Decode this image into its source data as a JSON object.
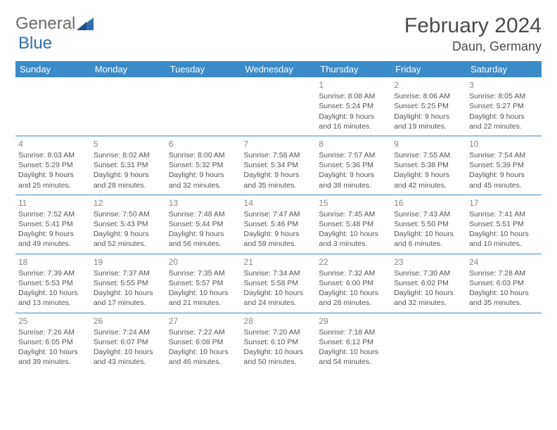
{
  "brand": {
    "word1": "General",
    "word2": "Blue"
  },
  "title": "February 2024",
  "location": "Daun, Germany",
  "header_bg": "#3b8bc8",
  "weekdays": [
    "Sunday",
    "Monday",
    "Tuesday",
    "Wednesday",
    "Thursday",
    "Friday",
    "Saturday"
  ],
  "weeks": [
    [
      null,
      null,
      null,
      null,
      {
        "n": "1",
        "sr": "8:08 AM",
        "ss": "5:24 PM",
        "dl": "9 hours and 16 minutes."
      },
      {
        "n": "2",
        "sr": "8:06 AM",
        "ss": "5:25 PM",
        "dl": "9 hours and 19 minutes."
      },
      {
        "n": "3",
        "sr": "8:05 AM",
        "ss": "5:27 PM",
        "dl": "9 hours and 22 minutes."
      }
    ],
    [
      {
        "n": "4",
        "sr": "8:03 AM",
        "ss": "5:29 PM",
        "dl": "9 hours and 25 minutes."
      },
      {
        "n": "5",
        "sr": "8:02 AM",
        "ss": "5:31 PM",
        "dl": "9 hours and 28 minutes."
      },
      {
        "n": "6",
        "sr": "8:00 AM",
        "ss": "5:32 PM",
        "dl": "9 hours and 32 minutes."
      },
      {
        "n": "7",
        "sr": "7:58 AM",
        "ss": "5:34 PM",
        "dl": "9 hours and 35 minutes."
      },
      {
        "n": "8",
        "sr": "7:57 AM",
        "ss": "5:36 PM",
        "dl": "9 hours and 38 minutes."
      },
      {
        "n": "9",
        "sr": "7:55 AM",
        "ss": "5:38 PM",
        "dl": "9 hours and 42 minutes."
      },
      {
        "n": "10",
        "sr": "7:54 AM",
        "ss": "5:39 PM",
        "dl": "9 hours and 45 minutes."
      }
    ],
    [
      {
        "n": "11",
        "sr": "7:52 AM",
        "ss": "5:41 PM",
        "dl": "9 hours and 49 minutes."
      },
      {
        "n": "12",
        "sr": "7:50 AM",
        "ss": "5:43 PM",
        "dl": "9 hours and 52 minutes."
      },
      {
        "n": "13",
        "sr": "7:48 AM",
        "ss": "5:44 PM",
        "dl": "9 hours and 56 minutes."
      },
      {
        "n": "14",
        "sr": "7:47 AM",
        "ss": "5:46 PM",
        "dl": "9 hours and 59 minutes."
      },
      {
        "n": "15",
        "sr": "7:45 AM",
        "ss": "5:48 PM",
        "dl": "10 hours and 3 minutes."
      },
      {
        "n": "16",
        "sr": "7:43 AM",
        "ss": "5:50 PM",
        "dl": "10 hours and 6 minutes."
      },
      {
        "n": "17",
        "sr": "7:41 AM",
        "ss": "5:51 PM",
        "dl": "10 hours and 10 minutes."
      }
    ],
    [
      {
        "n": "18",
        "sr": "7:39 AM",
        "ss": "5:53 PM",
        "dl": "10 hours and 13 minutes."
      },
      {
        "n": "19",
        "sr": "7:37 AM",
        "ss": "5:55 PM",
        "dl": "10 hours and 17 minutes."
      },
      {
        "n": "20",
        "sr": "7:35 AM",
        "ss": "5:57 PM",
        "dl": "10 hours and 21 minutes."
      },
      {
        "n": "21",
        "sr": "7:34 AM",
        "ss": "5:58 PM",
        "dl": "10 hours and 24 minutes."
      },
      {
        "n": "22",
        "sr": "7:32 AM",
        "ss": "6:00 PM",
        "dl": "10 hours and 28 minutes."
      },
      {
        "n": "23",
        "sr": "7:30 AM",
        "ss": "6:02 PM",
        "dl": "10 hours and 32 minutes."
      },
      {
        "n": "24",
        "sr": "7:28 AM",
        "ss": "6:03 PM",
        "dl": "10 hours and 35 minutes."
      }
    ],
    [
      {
        "n": "25",
        "sr": "7:26 AM",
        "ss": "6:05 PM",
        "dl": "10 hours and 39 minutes."
      },
      {
        "n": "26",
        "sr": "7:24 AM",
        "ss": "6:07 PM",
        "dl": "10 hours and 43 minutes."
      },
      {
        "n": "27",
        "sr": "7:22 AM",
        "ss": "6:08 PM",
        "dl": "10 hours and 46 minutes."
      },
      {
        "n": "28",
        "sr": "7:20 AM",
        "ss": "6:10 PM",
        "dl": "10 hours and 50 minutes."
      },
      {
        "n": "29",
        "sr": "7:18 AM",
        "ss": "6:12 PM",
        "dl": "10 hours and 54 minutes."
      },
      null,
      null
    ]
  ],
  "labels": {
    "sunrise": "Sunrise: ",
    "sunset": "Sunset: ",
    "daylight": "Daylight: "
  }
}
